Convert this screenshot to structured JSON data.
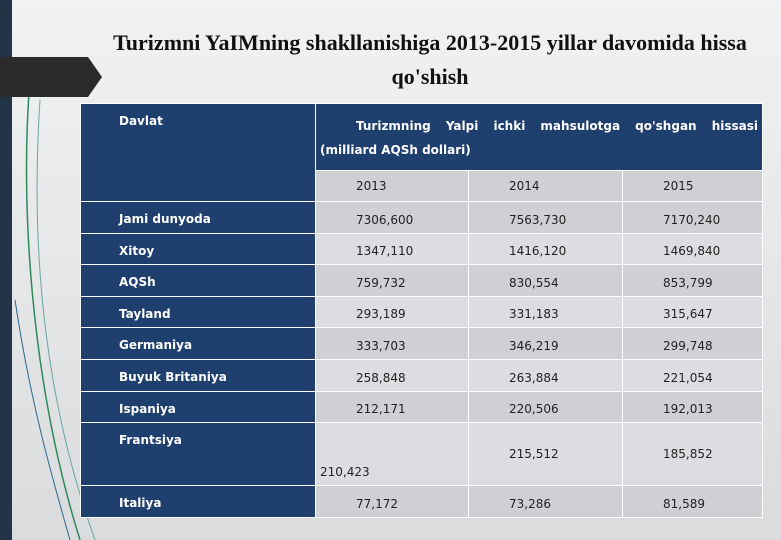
{
  "title": "Turizmni YaIMning shakllanishiga 2013-2015 yillar davomida hissa qo'shish",
  "table": {
    "header": {
      "country": "Davlat",
      "measure": "Turizmning Yalpi ichki mahsulotga qo'shgan hissasi (milliard AQSh dollari)",
      "years": [
        "2013",
        "2014",
        "2015"
      ]
    },
    "rows": [
      [
        "Jami dunyoda",
        "7306,600",
        "7563,730",
        "7170,240"
      ],
      [
        "Xitoy",
        "1347,110",
        "1416,120",
        "1469,840"
      ],
      [
        "AQSh",
        "759,732",
        "830,554",
        "853,799"
      ],
      [
        "Tayland",
        "293,189",
        "331,183",
        "315,647"
      ],
      [
        "Germaniya",
        "333,703",
        "346,219",
        "299,748"
      ],
      [
        "Buyuk Britaniya",
        "258,848",
        "263,884",
        "221,054"
      ],
      [
        "Ispaniya",
        "212,171",
        "220,506",
        "192,013"
      ],
      [
        "Frantsiya",
        "210,423",
        "215,512",
        "185,852"
      ],
      [
        "Italiya",
        "77,172",
        "73,286",
        "81,589"
      ]
    ]
  }
}
